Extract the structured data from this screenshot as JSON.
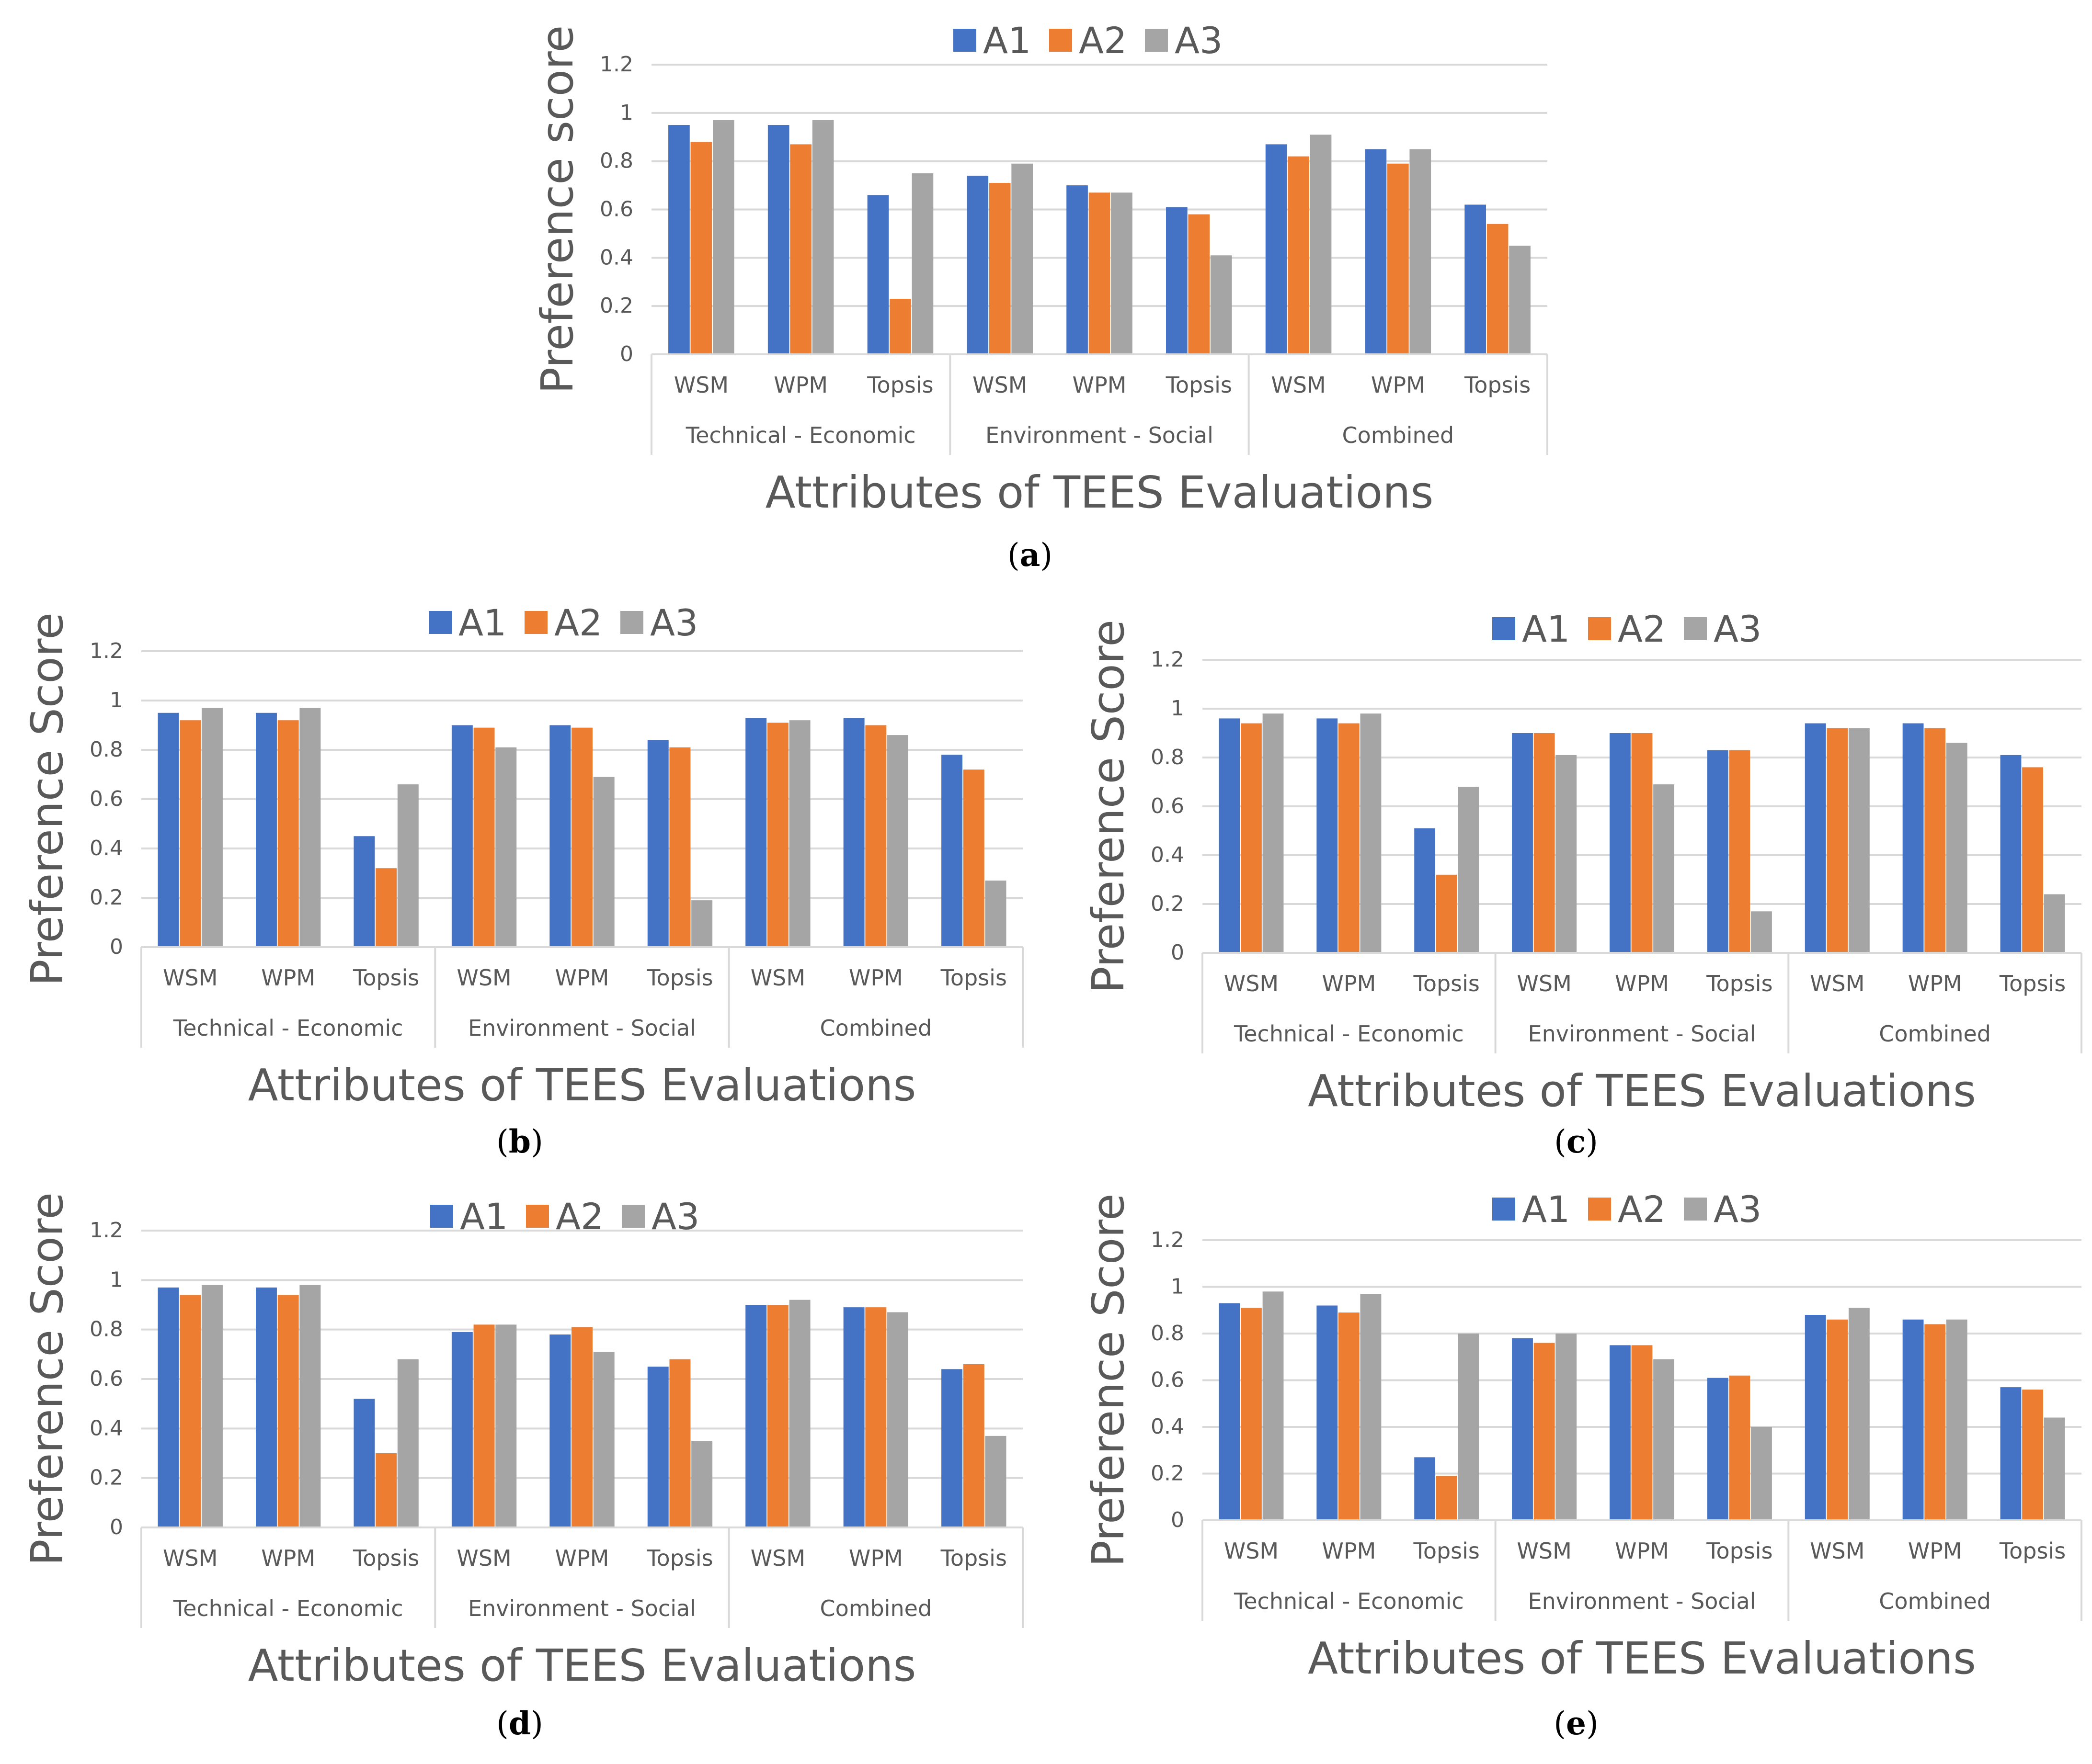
{
  "figure": {
    "panels": [
      {
        "id": "a",
        "caption": "a"
      },
      {
        "id": "b",
        "caption": "b"
      },
      {
        "id": "c",
        "caption": "c"
      },
      {
        "id": "d",
        "caption": "d"
      },
      {
        "id": "e",
        "caption": "e"
      }
    ]
  },
  "colors": {
    "A1": "#4472C4",
    "A2": "#ED7D31",
    "A3": "#A5A5A5",
    "grid": "#D9D9D9",
    "axis_text": "#595959"
  },
  "chart_data": [
    {
      "panel": "a",
      "type": "bar",
      "title": "",
      "xlabel": "Attributes of TEES Evaluations",
      "ylabel": "Preference score",
      "ylim": [
        0,
        1.2
      ],
      "yticks": [
        "0",
        "0.2",
        "0.4",
        "0.6",
        "0.8",
        "1",
        "1.2"
      ],
      "legend": "top",
      "groups": [
        "Technical - Economic",
        "Environment - Social",
        "Combined"
      ],
      "categories": [
        "WSM",
        "WPM",
        "Topsis",
        "WSM",
        "WPM",
        "Topsis",
        "WSM",
        "WPM",
        "Topsis"
      ],
      "series": [
        {
          "name": "A1",
          "values": [
            0.95,
            0.95,
            0.66,
            0.74,
            0.7,
            0.61,
            0.87,
            0.85,
            0.62
          ]
        },
        {
          "name": "A2",
          "values": [
            0.88,
            0.87,
            0.23,
            0.71,
            0.67,
            0.58,
            0.82,
            0.79,
            0.54
          ]
        },
        {
          "name": "A3",
          "values": [
            0.97,
            0.97,
            0.75,
            0.79,
            0.67,
            0.41,
            0.91,
            0.85,
            0.45
          ]
        }
      ]
    },
    {
      "panel": "b",
      "type": "bar",
      "title": "",
      "xlabel": "Attributes of TEES Evaluations",
      "ylabel": "Preference Score",
      "ylim": [
        0,
        1.2
      ],
      "yticks": [
        "0",
        "0.2",
        "0.4",
        "0.6",
        "0.8",
        "1",
        "1.2"
      ],
      "legend": "top",
      "groups": [
        "Technical - Economic",
        "Environment - Social",
        "Combined"
      ],
      "categories": [
        "WSM",
        "WPM",
        "Topsis",
        "WSM",
        "WPM",
        "Topsis",
        "WSM",
        "WPM",
        "Topsis"
      ],
      "series": [
        {
          "name": "A1",
          "values": [
            0.95,
            0.95,
            0.45,
            0.9,
            0.9,
            0.84,
            0.93,
            0.93,
            0.78
          ]
        },
        {
          "name": "A2",
          "values": [
            0.92,
            0.92,
            0.32,
            0.89,
            0.89,
            0.81,
            0.91,
            0.9,
            0.72
          ]
        },
        {
          "name": "A3",
          "values": [
            0.97,
            0.97,
            0.66,
            0.81,
            0.69,
            0.19,
            0.92,
            0.86,
            0.27
          ]
        }
      ]
    },
    {
      "panel": "c",
      "type": "bar",
      "title": "",
      "xlabel": "Attributes of TEES Evaluations",
      "ylabel": "Preference Score",
      "ylim": [
        0,
        1.2
      ],
      "yticks": [
        "0",
        "0.2",
        "0.4",
        "0.6",
        "0.8",
        "1",
        "1.2"
      ],
      "legend": "top",
      "groups": [
        "Technical - Economic",
        "Environment - Social",
        "Combined"
      ],
      "categories": [
        "WSM",
        "WPM",
        "Topsis",
        "WSM",
        "WPM",
        "Topsis",
        "WSM",
        "WPM",
        "Topsis"
      ],
      "series": [
        {
          "name": "A1",
          "values": [
            0.96,
            0.96,
            0.51,
            0.9,
            0.9,
            0.83,
            0.94,
            0.94,
            0.81
          ]
        },
        {
          "name": "A2",
          "values": [
            0.94,
            0.94,
            0.32,
            0.9,
            0.9,
            0.83,
            0.92,
            0.92,
            0.76
          ]
        },
        {
          "name": "A3",
          "values": [
            0.98,
            0.98,
            0.68,
            0.81,
            0.69,
            0.17,
            0.92,
            0.86,
            0.24
          ]
        }
      ]
    },
    {
      "panel": "d",
      "type": "bar",
      "title": "",
      "xlabel": "Attributes of TEES Evaluations",
      "ylabel": "Preference Score",
      "ylim": [
        0,
        1.2
      ],
      "yticks": [
        "0",
        "0.2",
        "0.4",
        "0.6",
        "0.8",
        "1",
        "1.2"
      ],
      "legend": "top",
      "groups": [
        "Technical - Economic",
        "Environment - Social",
        "Combined"
      ],
      "categories": [
        "WSM",
        "WPM",
        "Topsis",
        "WSM",
        "WPM",
        "Topsis",
        "WSM",
        "WPM",
        "Topsis"
      ],
      "series": [
        {
          "name": "A1",
          "values": [
            0.97,
            0.97,
            0.52,
            0.79,
            0.78,
            0.65,
            0.9,
            0.89,
            0.64
          ]
        },
        {
          "name": "A2",
          "values": [
            0.94,
            0.94,
            0.3,
            0.82,
            0.81,
            0.68,
            0.9,
            0.89,
            0.66
          ]
        },
        {
          "name": "A3",
          "values": [
            0.98,
            0.98,
            0.68,
            0.82,
            0.71,
            0.35,
            0.92,
            0.87,
            0.37
          ]
        }
      ]
    },
    {
      "panel": "e",
      "type": "bar",
      "title": "",
      "xlabel": "Attributes of TEES Evaluations",
      "ylabel": "Preference Score",
      "ylim": [
        0,
        1.2
      ],
      "yticks": [
        "0",
        "0.2",
        "0.4",
        "0.6",
        "0.8",
        "1",
        "1.2"
      ],
      "legend": "top",
      "groups": [
        "Technical - Economic",
        "Environment - Social",
        "Combined"
      ],
      "categories": [
        "WSM",
        "WPM",
        "Topsis",
        "WSM",
        "WPM",
        "Topsis",
        "WSM",
        "WPM",
        "Topsis"
      ],
      "series": [
        {
          "name": "A1",
          "values": [
            0.93,
            0.92,
            0.27,
            0.78,
            0.75,
            0.61,
            0.88,
            0.86,
            0.57
          ]
        },
        {
          "name": "A2",
          "values": [
            0.91,
            0.89,
            0.19,
            0.76,
            0.75,
            0.62,
            0.86,
            0.84,
            0.56
          ]
        },
        {
          "name": "A3",
          "values": [
            0.98,
            0.97,
            0.8,
            0.8,
            0.69,
            0.4,
            0.91,
            0.86,
            0.44
          ]
        }
      ]
    }
  ]
}
